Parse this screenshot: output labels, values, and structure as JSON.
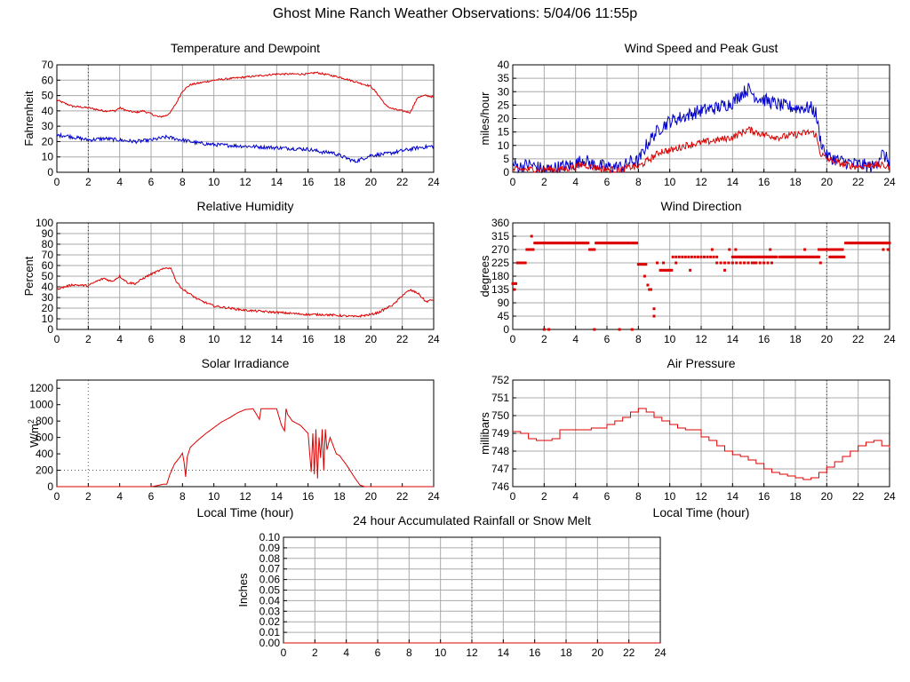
{
  "page": {
    "title": "Ghost Mine Ranch Weather Observations: 5/04/06 11:55p"
  },
  "colors": {
    "grid": "#aaaaaa",
    "red": "#dd0000",
    "blue": "#0000cc",
    "axis": "#000000"
  },
  "chart_data": [
    {
      "id": "temp",
      "type": "line",
      "title": "Temperature and Dewpoint",
      "ylabel": "Fahrenheit",
      "xlabel": "",
      "xlim": [
        0,
        24
      ],
      "ylim": [
        0,
        70
      ],
      "xticks": [
        0,
        2,
        4,
        6,
        8,
        10,
        12,
        14,
        16,
        18,
        20,
        22,
        24
      ],
      "yticks": [
        0,
        10,
        20,
        30,
        40,
        50,
        60,
        70
      ],
      "ytick_labels": [
        "0",
        "10",
        "20",
        "30",
        "40",
        "50",
        "60",
        "70"
      ],
      "grid": true,
      "series": [
        {
          "color": "red",
          "style": "line",
          "noise": 0.6,
          "x": [
            0,
            0.5,
            1,
            2,
            3,
            3.7,
            4,
            4.5,
            5,
            5.5,
            6,
            6.5,
            7,
            7.3,
            7.6,
            8,
            8.5,
            9,
            10,
            11,
            12,
            13,
            14,
            15,
            16,
            16.5,
            17,
            18,
            19,
            20,
            20.5,
            21,
            21.5,
            22,
            22.5,
            23,
            23.5,
            24
          ],
          "y": [
            47,
            45,
            43,
            42,
            40,
            40,
            42,
            40,
            39,
            40,
            38,
            36,
            37,
            40,
            45,
            53,
            57,
            58,
            60,
            61,
            62,
            63,
            64,
            64,
            64,
            65,
            64,
            62,
            59,
            56,
            50,
            43,
            41,
            40,
            39,
            49,
            50,
            49
          ]
        },
        {
          "color": "blue",
          "style": "line",
          "noise": 1.2,
          "x": [
            0,
            0.5,
            1,
            2,
            3,
            4,
            5,
            6,
            7,
            8,
            9,
            10,
            12,
            14,
            16,
            17,
            17.5,
            18,
            18.5,
            19,
            19.5,
            20,
            21,
            22,
            22.5,
            23,
            24
          ],
          "y": [
            24,
            24,
            23,
            21,
            22,
            21,
            20,
            21,
            23,
            21,
            19,
            18,
            17,
            16,
            15,
            13,
            13,
            11,
            9,
            7,
            9,
            11,
            12,
            14,
            15,
            16,
            17
          ]
        }
      ]
    },
    {
      "id": "wind",
      "type": "line",
      "title": "Wind Speed and Peak Gust",
      "ylabel": "miles/hour",
      "xlabel": "",
      "xlim": [
        0,
        24
      ],
      "ylim": [
        0,
        40
      ],
      "xticks": [
        0,
        2,
        4,
        6,
        8,
        10,
        12,
        14,
        16,
        18,
        20,
        22,
        24
      ],
      "yticks": [
        0,
        5,
        10,
        15,
        20,
        25,
        30,
        35,
        40
      ],
      "ytick_labels": [
        "0",
        "5",
        "10",
        "15",
        "20",
        "25",
        "30",
        "35",
        "40"
      ],
      "grid": true,
      "series": [
        {
          "color": "blue",
          "style": "line",
          "noise": 2.5,
          "x": [
            0,
            0.5,
            1,
            1.5,
            2,
            3,
            4,
            4.5,
            5,
            6,
            7,
            7.5,
            8,
            8.5,
            9,
            9.5,
            10,
            11,
            12,
            13,
            14,
            14.5,
            15,
            15.5,
            16,
            17,
            18,
            19,
            19.3,
            19.6,
            20,
            21,
            22,
            23,
            23.5,
            24
          ],
          "y": [
            3,
            2,
            3,
            2,
            1,
            2,
            3,
            5,
            3,
            2,
            2,
            4,
            4,
            10,
            14,
            17,
            19,
            21,
            23,
            24,
            26,
            29,
            31,
            28,
            27,
            25,
            24,
            24,
            22,
            12,
            6,
            4,
            3,
            2,
            7,
            4
          ]
        },
        {
          "color": "red",
          "style": "line",
          "noise": 1.3,
          "x": [
            0,
            1,
            2,
            3,
            4,
            4.5,
            5,
            6,
            7,
            7.5,
            8,
            8.5,
            9,
            9.5,
            10,
            11,
            12,
            13,
            14,
            15,
            16,
            17,
            18,
            19,
            19.3,
            19.6,
            20,
            21,
            22,
            23,
            24
          ],
          "y": [
            1,
            1,
            1,
            1,
            2,
            3,
            2,
            1,
            1,
            2,
            2,
            4,
            6,
            8,
            8,
            10,
            11,
            12,
            13,
            16,
            14,
            13,
            14,
            15,
            14,
            7,
            5,
            3,
            2,
            3,
            2
          ]
        }
      ]
    },
    {
      "id": "rh",
      "type": "line",
      "title": "Relative Humidity",
      "ylabel": "Percent",
      "xlabel": "",
      "xlim": [
        0,
        24
      ],
      "ylim": [
        0,
        100
      ],
      "xticks": [
        0,
        2,
        4,
        6,
        8,
        10,
        12,
        14,
        16,
        18,
        20,
        22,
        24
      ],
      "yticks": [
        0,
        10,
        20,
        30,
        40,
        50,
        60,
        70,
        80,
        90,
        100
      ],
      "ytick_labels": [
        "0",
        "10",
        "20",
        "30",
        "40",
        "50",
        "60",
        "70",
        "80",
        "90",
        "100"
      ],
      "grid": true,
      "series": [
        {
          "color": "red",
          "style": "line",
          "noise": 1.0,
          "x": [
            0,
            0.5,
            1,
            2,
            2.5,
            3,
            3.5,
            4,
            4.5,
            5,
            5.5,
            6,
            6.5,
            7,
            7.3,
            7.6,
            8,
            8.5,
            9,
            10,
            11,
            12,
            13,
            14,
            15,
            16,
            17,
            18,
            19,
            20,
            20.5,
            21,
            21.5,
            22,
            22.5,
            23,
            23.5,
            24
          ],
          "y": [
            38,
            40,
            42,
            41,
            45,
            48,
            45,
            50,
            44,
            43,
            48,
            52,
            55,
            58,
            57,
            45,
            38,
            33,
            28,
            22,
            20,
            18,
            17,
            16,
            15,
            14,
            14,
            13,
            12,
            14,
            16,
            20,
            24,
            32,
            37,
            34,
            26,
            28
          ]
        }
      ]
    },
    {
      "id": "dir",
      "type": "scatter",
      "title": "Wind Direction",
      "ylabel": "degrees",
      "xlabel": "",
      "xlim": [
        0,
        24
      ],
      "ylim": [
        0,
        360
      ],
      "xticks": [
        0,
        2,
        4,
        6,
        8,
        10,
        12,
        14,
        16,
        18,
        20,
        22,
        24
      ],
      "yticks": [
        0,
        45,
        90,
        135,
        180,
        225,
        270,
        315,
        360
      ],
      "ytick_labels": [
        "0",
        "45",
        "90",
        "135",
        "180",
        "225",
        "270",
        "315",
        "360"
      ],
      "grid": true,
      "series": [
        {
          "color": "red",
          "style": "points",
          "segments": [
            {
              "x0": 0.0,
              "x1": 0.2,
              "y": 155,
              "step": 0.1
            },
            {
              "x0": 0.3,
              "x1": 0.8,
              "y": 225,
              "step": 0.1
            },
            {
              "x0": 0.9,
              "x1": 1.3,
              "y": 270,
              "step": 0.1
            },
            {
              "x0": 1.4,
              "x1": 4.8,
              "y": 292,
              "step": 0.1
            },
            {
              "x0": 4.9,
              "x1": 5.2,
              "y": 270,
              "step": 0.1
            },
            {
              "x0": 5.3,
              "x1": 7.9,
              "y": 292,
              "step": 0.1
            },
            {
              "x0": 8.0,
              "x1": 8.5,
              "y": 220,
              "step": 0.12
            },
            {
              "x0": 9.4,
              "x1": 10.2,
              "y": 200,
              "step": 0.12
            },
            {
              "x0": 10.2,
              "x1": 13.0,
              "y": 245,
              "step": 0.2
            },
            {
              "x0": 13.0,
              "x1": 16.5,
              "y": 225,
              "step": 0.25
            },
            {
              "x0": 14.0,
              "x1": 16.8,
              "y": 245,
              "step": 0.1
            },
            {
              "x0": 17.0,
              "x1": 19.5,
              "y": 245,
              "step": 0.1
            },
            {
              "x0": 19.5,
              "x1": 21.0,
              "y": 270,
              "step": 0.1
            },
            {
              "x0": 20.2,
              "x1": 21.1,
              "y": 245,
              "step": 0.1
            },
            {
              "x0": 21.2,
              "x1": 24.0,
              "y": 292,
              "step": 0.1
            }
          ],
          "x": [
            0.1,
            1.2,
            2.0,
            2.3,
            5.2,
            6.8,
            7.6,
            8.4,
            8.6,
            8.8,
            9.0,
            9.0,
            8.7,
            9.2,
            9.6,
            10.4,
            11.3,
            12.7,
            13.5,
            13.8,
            14.2,
            15.4,
            16.4,
            18.6,
            19.6,
            20.4,
            23.6,
            23.9
          ],
          "y": [
            135,
            315,
            0,
            0,
            0,
            0,
            0,
            180,
            150,
            135,
            45,
            70,
            135,
            225,
            225,
            225,
            200,
            270,
            200,
            270,
            270,
            225,
            270,
            270,
            225,
            270,
            270,
            270
          ]
        }
      ]
    },
    {
      "id": "solar",
      "type": "line",
      "title": "Solar Irradiance",
      "ylabel": "W/m2",
      "xlabel": "Local Time (hour)",
      "xlim": [
        0,
        24
      ],
      "ylim": [
        0,
        1300
      ],
      "xticks": [
        0,
        2,
        4,
        6,
        8,
        10,
        12,
        14,
        16,
        18,
        20,
        22,
        24
      ],
      "yticks": [
        0,
        200,
        400,
        600,
        800,
        1000,
        1200
      ],
      "ytick_labels": [
        "0",
        "200",
        "400",
        "600",
        "800",
        "1000",
        "1200"
      ],
      "grid": false,
      "series": [
        {
          "color": "red",
          "style": "line",
          "noise": 0,
          "x": [
            0,
            6.0,
            6.2,
            6.8,
            7.0,
            7.2,
            7.5,
            7.8,
            8.0,
            8.1,
            8.2,
            8.3,
            8.5,
            9,
            9.5,
            10,
            10.5,
            11,
            11.5,
            12,
            12.5,
            12.9,
            13.0,
            13.1,
            13.5,
            14,
            14.3,
            14.5,
            14.6,
            14.7,
            15,
            15.5,
            16,
            16.2,
            16.3,
            16.4,
            16.5,
            16.6,
            16.7,
            16.8,
            16.9,
            17.0,
            17.1,
            17.2,
            17.4,
            17.6,
            17.8,
            18,
            18.5,
            19,
            19.3,
            19.6,
            20,
            24
          ],
          "y": [
            0,
            0,
            5,
            30,
            30,
            150,
            280,
            350,
            410,
            300,
            120,
            360,
            480,
            570,
            650,
            720,
            790,
            840,
            900,
            940,
            950,
            820,
            950,
            950,
            950,
            950,
            750,
            680,
            950,
            880,
            800,
            750,
            650,
            180,
            650,
            150,
            700,
            100,
            600,
            350,
            700,
            200,
            700,
            450,
            600,
            500,
            400,
            380,
            250,
            100,
            20,
            0,
            0,
            0
          ]
        }
      ]
    },
    {
      "id": "press",
      "type": "line",
      "title": "Air Pressure",
      "ylabel": "millibars",
      "xlabel": "Local Time (hour)",
      "xlim": [
        0,
        24
      ],
      "ylim": [
        746,
        752
      ],
      "xticks": [
        0,
        2,
        4,
        6,
        8,
        10,
        12,
        14,
        16,
        18,
        20,
        22,
        24
      ],
      "yticks": [
        746,
        747,
        748,
        749,
        750,
        751,
        752
      ],
      "ytick_labels": [
        "746",
        "747",
        "748",
        "749",
        "750",
        "751",
        "752"
      ],
      "grid": true,
      "series": [
        {
          "color": "red",
          "style": "step",
          "noise": 0,
          "x": [
            0,
            0.5,
            1,
            1.5,
            2,
            2.5,
            3,
            4,
            5,
            6,
            6.5,
            7,
            7.5,
            8,
            8.5,
            9,
            9.5,
            10,
            10.5,
            11,
            12,
            12.5,
            13,
            13.5,
            14,
            14.5,
            15,
            15.5,
            16,
            16.5,
            17,
            17.5,
            18,
            18.5,
            19,
            19.5,
            20,
            20.5,
            21,
            21.5,
            22,
            22.5,
            23,
            23.5,
            24
          ],
          "y": [
            749.1,
            749.0,
            748.7,
            748.6,
            748.6,
            748.7,
            749.2,
            749.2,
            749.3,
            749.5,
            749.7,
            749.9,
            750.2,
            750.4,
            750.2,
            749.9,
            749.7,
            749.5,
            749.3,
            749.2,
            748.8,
            748.6,
            748.3,
            748.0,
            747.8,
            747.7,
            747.5,
            747.3,
            747.0,
            746.8,
            746.7,
            746.6,
            746.5,
            746.4,
            746.5,
            746.8,
            747.1,
            747.4,
            747.7,
            748.0,
            748.3,
            748.5,
            748.6,
            748.3,
            748.2
          ]
        }
      ]
    },
    {
      "id": "rain",
      "type": "line",
      "title": "24 hour Accumulated Rainfall or Snow Melt",
      "ylabel": "Inches",
      "xlabel": "",
      "xlim": [
        0,
        24
      ],
      "ylim": [
        0,
        0.1
      ],
      "xticks": [
        0,
        2,
        4,
        6,
        8,
        10,
        12,
        14,
        16,
        18,
        20,
        22,
        24
      ],
      "yticks": [
        0,
        0.01,
        0.02,
        0.03,
        0.04,
        0.05,
        0.06,
        0.07,
        0.08,
        0.09,
        0.1
      ],
      "ytick_labels": [
        "0.00",
        "0.01",
        "0.02",
        "0.03",
        "0.04",
        "0.05",
        "0.06",
        "0.07",
        "0.08",
        "0.09",
        "0.10"
      ],
      "grid": true,
      "series": [
        {
          "color": "red",
          "style": "line",
          "noise": 0,
          "x": [
            0,
            24
          ],
          "y": [
            0,
            0
          ]
        }
      ]
    }
  ]
}
